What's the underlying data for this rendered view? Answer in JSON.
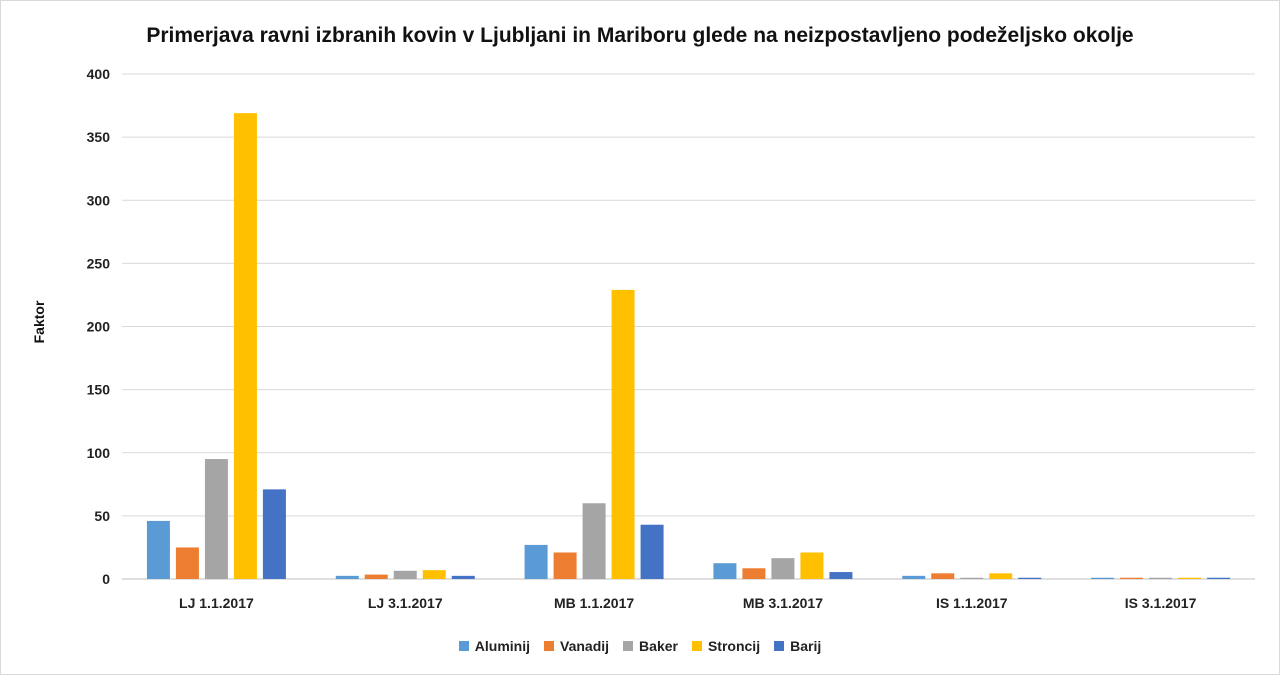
{
  "chart_data": {
    "type": "bar",
    "title": "Primerjava ravni izbranih kovin v Ljubljani in Mariboru glede na neizpostavljeno podeželjsko okolje",
    "xlabel": "",
    "ylabel": "Faktor",
    "ylim": [
      0,
      400
    ],
    "yticks": [
      0,
      50,
      100,
      150,
      200,
      250,
      300,
      350,
      400
    ],
    "grid": true,
    "legend_position": "bottom",
    "categories": [
      "LJ 1.1.2017",
      "LJ 3.1.2017",
      "MB 1.1.2017",
      "MB 3.1.2017",
      "IS 1.1.2017",
      "IS 3.1.2017"
    ],
    "series": [
      {
        "name": "Aluminij",
        "color": "#5B9BD5",
        "values": [
          46,
          2.5,
          27,
          12.5,
          2.5,
          1
        ]
      },
      {
        "name": "Vanadij",
        "color": "#ED7D31",
        "values": [
          25,
          3.5,
          21,
          8.5,
          4.5,
          1
        ]
      },
      {
        "name": "Baker",
        "color": "#A5A5A5",
        "values": [
          95,
          6.5,
          60,
          16.5,
          1,
          1
        ]
      },
      {
        "name": "Stroncij",
        "color": "#FFC000",
        "values": [
          369,
          7,
          229,
          21,
          4.5,
          1
        ]
      },
      {
        "name": "Barij",
        "color": "#4472C4",
        "values": [
          71,
          2.5,
          43,
          5.5,
          1,
          1
        ]
      }
    ]
  }
}
